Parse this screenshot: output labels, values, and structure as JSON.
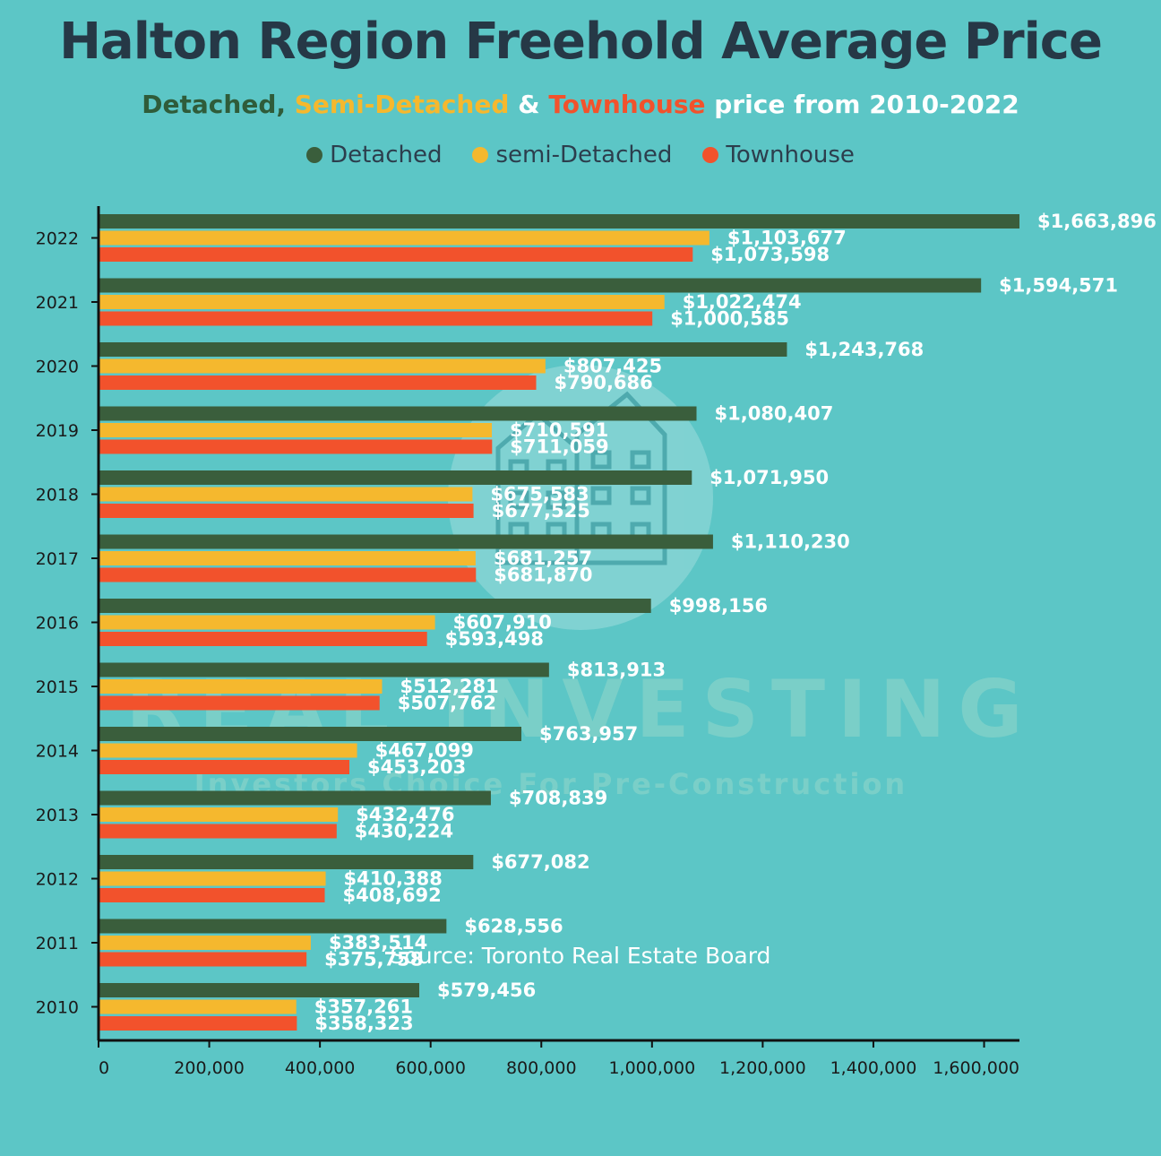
{
  "page": {
    "title": "Halton Region Freehold Average Price",
    "subtitle": {
      "detached": "Detached,",
      "semi": "Semi-Detached",
      "and": "&",
      "townhouse": "Townhouse",
      "rest": "price from 2010-2022"
    },
    "source": "Source: Toronto Real Estate Board",
    "watermark": {
      "main": "REAL INVESTING",
      "tagline": "Investors Choice For Pre-Construction"
    }
  },
  "colors": {
    "background": "#5cc6c6",
    "detached": "#3a5e3c",
    "semi": "#f5b82e",
    "townhouse": "#f2522c",
    "title": "#263846",
    "label": "#ffffff"
  },
  "chart_data": {
    "type": "bar",
    "orientation": "horizontal",
    "categories": [
      "2022",
      "2021",
      "2020",
      "2019",
      "2018",
      "2017",
      "2016",
      "2015",
      "2014",
      "2013",
      "2012",
      "2011",
      "2010"
    ],
    "series": [
      {
        "name": "Detached",
        "color": "#3a5e3c",
        "values": [
          1663896,
          1594571,
          1243768,
          1080407,
          1071950,
          1110230,
          998156,
          813913,
          763957,
          708839,
          677082,
          628556,
          579456
        ],
        "labels": [
          "$1,663,896",
          "$1,594,571",
          "$1,243,768",
          "$1,080,407",
          "$1,071,950",
          "$1,110,230",
          "$998,156",
          "$813,913",
          "$763,957",
          "$708,839",
          "$677,082",
          "$628,556",
          "$579,456"
        ]
      },
      {
        "name": "semi-Detached",
        "color": "#f5b82e",
        "values": [
          1103677,
          1022474,
          807425,
          710591,
          675583,
          681257,
          607910,
          512281,
          467099,
          432476,
          410388,
          383514,
          357261
        ],
        "labels": [
          "$1,103,677",
          "$1,022,474",
          "$807,425",
          "$710,591",
          "$675,583",
          "$681,257",
          "$607,910",
          "$512,281",
          "$467,099",
          "$432,476",
          "$410,388",
          "$383,514",
          "$357,261"
        ]
      },
      {
        "name": "Townhouse",
        "color": "#f2522c",
        "values": [
          1073598,
          1000585,
          790686,
          711059,
          677525,
          681870,
          593498,
          507762,
          453203,
          430224,
          408692,
          375758,
          358323
        ],
        "labels": [
          "$1,073,598",
          "$1,000,585",
          "$790,686",
          "$711,059",
          "$677,525",
          "$681,870",
          "$593,498",
          "$507,762",
          "$453,203",
          "$430,224",
          "$408,692",
          "$375,758",
          "$358,323"
        ]
      }
    ],
    "x_ticks": [
      0,
      200000,
      400000,
      600000,
      800000,
      1000000,
      1200000,
      1400000,
      1600000
    ],
    "x_tick_labels": [
      "0",
      "200,000",
      "400,000",
      "600,000",
      "800,000",
      "1,000,000",
      "1,200,000",
      "1,400,000",
      "1,600,000"
    ],
    "xlim": [
      0,
      1663896
    ],
    "legend": [
      "Detached",
      "semi-Detached",
      "Townhouse"
    ],
    "legend_position": "top-center",
    "grid": false
  }
}
